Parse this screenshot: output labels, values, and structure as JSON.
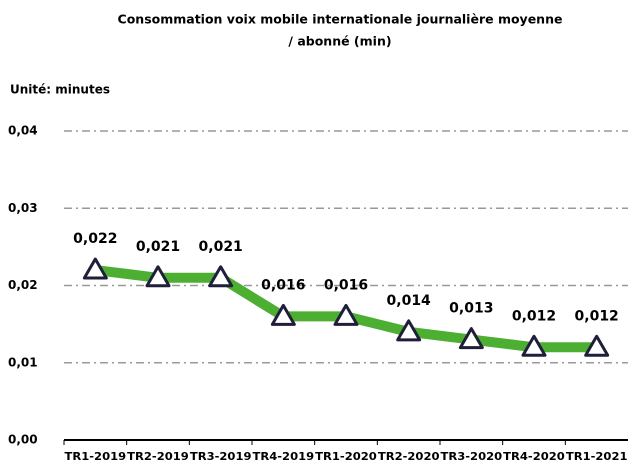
{
  "chart_data": {
    "type": "line",
    "title": [
      "Consommation voix mobile  internationale journalière moyenne",
      "/ abonné (min)"
    ],
    "subtitle": "Unité: minutes",
    "categories": [
      "TR1-2019",
      "TR2-2019",
      "TR3-2019",
      "TR4-2019",
      "TR1-2020",
      "TR2-2020",
      "TR3-2020",
      "TR4-2020",
      "TR1-2021"
    ],
    "series": [
      {
        "name": "Consommation",
        "color": "#4caf32",
        "values": [
          0.022,
          0.021,
          0.021,
          0.016,
          0.016,
          0.014,
          0.013,
          0.012,
          0.012
        ],
        "value_labels": [
          "0,022",
          "0,021",
          "0,021",
          "0,016",
          "0,016",
          "0,014",
          "0,013",
          "0,012",
          "0,012"
        ]
      }
    ],
    "ylim": [
      0,
      0.04
    ],
    "yticks": [
      {
        "value": 0,
        "label": "0,00"
      },
      {
        "value": 0.01,
        "label": "0,01"
      },
      {
        "value": 0.02,
        "label": "0,02"
      },
      {
        "value": 0.03,
        "label": "0,03"
      },
      {
        "value": 0.04,
        "label": "0,04"
      }
    ],
    "grid": true
  }
}
